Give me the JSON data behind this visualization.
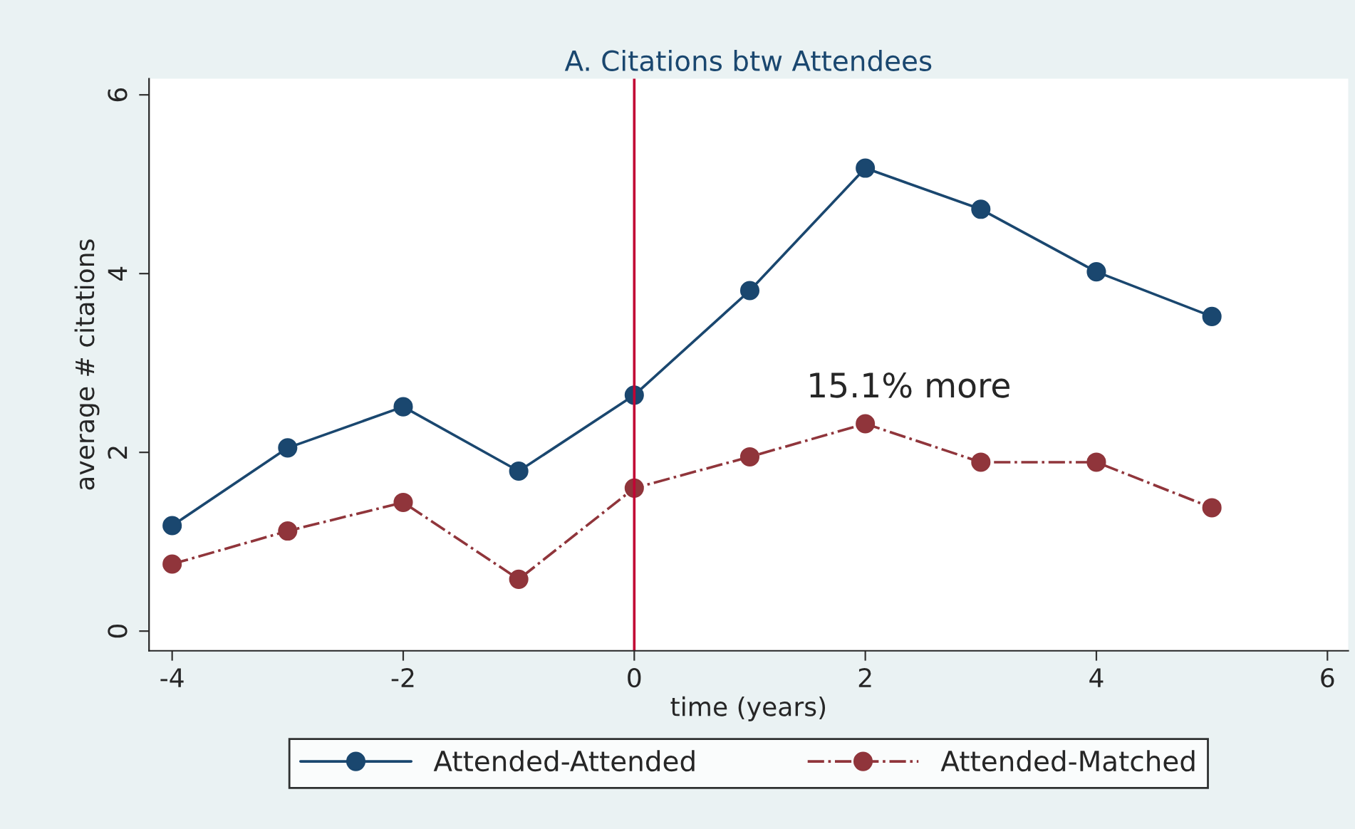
{
  "chart_data": {
    "type": "line",
    "title": "A. Citations btw Attendees",
    "xlabel": "time (years)",
    "ylabel": "average # citations",
    "x": [
      -4,
      -3,
      -2,
      -1,
      0,
      1,
      2,
      3,
      4,
      5
    ],
    "series": [
      {
        "name": "Attended-Attended",
        "color": "#1a476f",
        "values": [
          1.18,
          2.05,
          2.51,
          1.79,
          2.64,
          3.81,
          5.18,
          4.72,
          4.02,
          3.52
        ],
        "line_style": "solid"
      },
      {
        "name": "Attended-Matched",
        "color": "#90353b",
        "values": [
          0.75,
          1.12,
          1.44,
          0.58,
          1.6,
          1.95,
          2.32,
          1.89,
          1.89,
          1.38
        ],
        "line_style": "dashdot"
      }
    ],
    "xlim": [
      -4.2,
      6.18
    ],
    "xticks": [
      -4,
      -2,
      0,
      2,
      4,
      6
    ],
    "ylim": [
      -0.22,
      6.18
    ],
    "yticks": [
      0,
      2,
      4,
      6
    ],
    "ref_lines": [
      {
        "axis": "x",
        "value": 0,
        "color": "#c10534"
      }
    ],
    "annotations": [
      {
        "text": "15.1% more",
        "x": 2,
        "y": 2.32
      }
    ],
    "marker": "circle",
    "grid": false,
    "legend": "bottom"
  }
}
